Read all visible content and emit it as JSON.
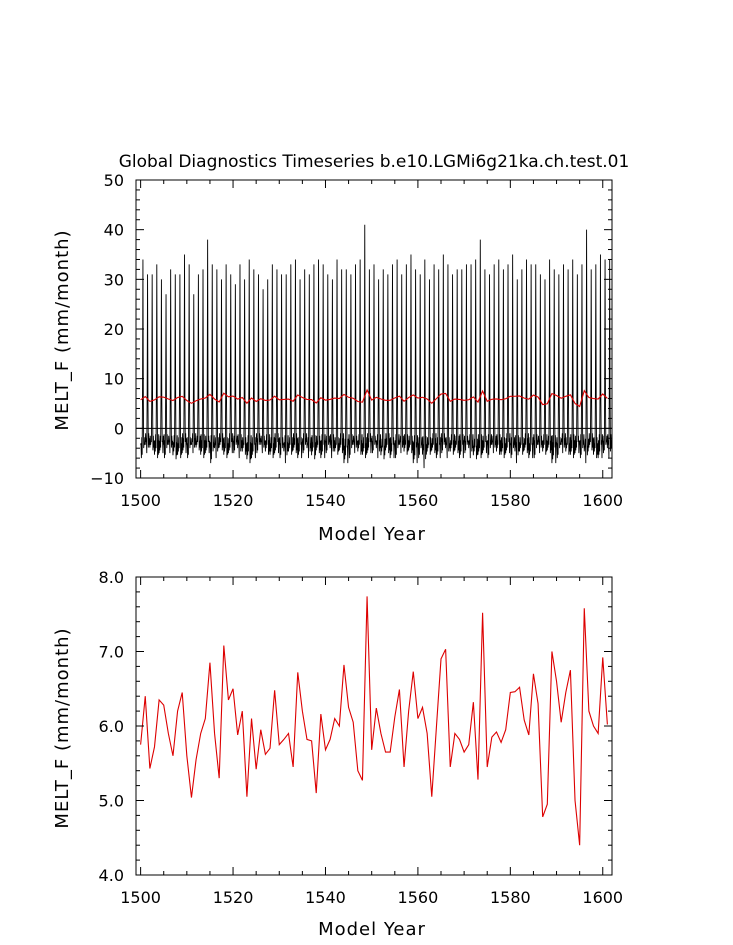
{
  "chart_data": [
    {
      "type": "line",
      "title": "Global Diagnostics Timeseries b.e10.LGMi6g21ka.ch.test.01",
      "xlabel": "Model Year",
      "ylabel": "MELT_F (mm/month)",
      "xlim": [
        1499,
        1602
      ],
      "ylim": [
        -10,
        50
      ],
      "xticks": [
        1500,
        1520,
        1540,
        1560,
        1580,
        1600
      ],
      "yticks": [
        -10,
        0,
        10,
        20,
        30,
        40,
        50
      ],
      "xtick_labels": [
        "1500",
        "1520",
        "1540",
        "1560",
        "1580",
        "1600"
      ],
      "ytick_labels": [
        "−10",
        "0",
        "10",
        "20",
        "30",
        "40",
        "50"
      ],
      "zero_line": true,
      "grid": false,
      "series": [
        {
          "kind": "monthly",
          "color": "#000000",
          "start_year": 1500,
          "annual_peaks": [
            34,
            31,
            31,
            33,
            30,
            27,
            32,
            31,
            31,
            35,
            33,
            27,
            31,
            32,
            38,
            33,
            32,
            30,
            33,
            31,
            29,
            33,
            30,
            34,
            32,
            31,
            28,
            30,
            33,
            32,
            31,
            31,
            33,
            34,
            30,
            32,
            31,
            33,
            34,
            33,
            31,
            30,
            34,
            32,
            32,
            31,
            33,
            34,
            41,
            32,
            33,
            30,
            32,
            31,
            33,
            34,
            31,
            33,
            35,
            32,
            31,
            34,
            30,
            33,
            32,
            35,
            33,
            31,
            32,
            32,
            33,
            33,
            34,
            38,
            32,
            31,
            33,
            34,
            32,
            33,
            35,
            30,
            32,
            34,
            33,
            33,
            31,
            30,
            34,
            32,
            31,
            33,
            32,
            34,
            31,
            33,
            40,
            32,
            33,
            35,
            34,
            34
          ],
          "annual_mins": [
            -6,
            -5,
            -5,
            -6,
            -5,
            -6,
            -5,
            -7,
            -6,
            -5,
            -6,
            -5,
            -5,
            -6,
            -5,
            -7,
            -6,
            -5,
            -6,
            -5,
            -5,
            -6,
            -6,
            -7,
            -6,
            -5,
            -5,
            -6,
            -6,
            -5,
            -6,
            -7,
            -6,
            -5,
            -6,
            -5,
            -6,
            -7,
            -5,
            -6,
            -5,
            -6,
            -6,
            -5,
            -7,
            -6,
            -5,
            -6,
            -6,
            -5,
            -5,
            -6,
            -7,
            -5,
            -6,
            -6,
            -5,
            -6,
            -5,
            -7,
            -6,
            -8,
            -6,
            -5,
            -6,
            -5,
            -6,
            -6,
            -5,
            -6,
            -5,
            -6,
            -7,
            -6,
            -5,
            -6,
            -5,
            -6,
            -6,
            -5,
            -6,
            -7,
            -6,
            -5,
            -6,
            -6,
            -5,
            -6,
            -5,
            -7,
            -6,
            -5,
            -6,
            -6,
            -5,
            -6,
            -7,
            -5,
            -6,
            -6,
            -5,
            -6
          ]
        },
        {
          "kind": "annual_mean",
          "color": "#dd0000",
          "start_year": 1500,
          "values": [
            5.75,
            6.4,
            5.43,
            5.72,
            6.35,
            6.28,
            5.9,
            5.6,
            6.2,
            6.45,
            5.6,
            5.04,
            5.55,
            5.9,
            6.1,
            6.85,
            5.9,
            5.3,
            7.08,
            6.35,
            6.5,
            5.88,
            6.2,
            5.05,
            6.1,
            5.42,
            5.95,
            5.62,
            5.7,
            6.48,
            5.75,
            5.82,
            5.9,
            5.45,
            6.72,
            6.2,
            5.82,
            5.8,
            5.1,
            6.16,
            5.68,
            5.82,
            6.1,
            6.0,
            6.82,
            6.25,
            6.05,
            5.4,
            5.27,
            7.74,
            5.68,
            6.24,
            5.9,
            5.65,
            5.65,
            6.12,
            6.49,
            5.45,
            6.2,
            6.73,
            6.1,
            6.25,
            5.9,
            5.05,
            5.98,
            6.9,
            7.03,
            5.45,
            5.9,
            5.82,
            5.65,
            5.75,
            6.32,
            5.28,
            7.52,
            5.45,
            5.85,
            5.92,
            5.78,
            5.95,
            6.45,
            6.46,
            6.52,
            6.08,
            5.88,
            6.7,
            6.3,
            4.78,
            4.95,
            7.0,
            6.6,
            6.05,
            6.45,
            6.75,
            5.0,
            4.4,
            7.58,
            6.2,
            6.0,
            5.9,
            6.92,
            6.02
          ]
        }
      ]
    },
    {
      "type": "line",
      "title": "",
      "xlabel": "Model Year",
      "ylabel": "MELT_F (mm/month)",
      "xlim": [
        1499,
        1602
      ],
      "ylim": [
        4.0,
        8.0
      ],
      "xticks": [
        1500,
        1520,
        1540,
        1560,
        1580,
        1600
      ],
      "yticks": [
        4.0,
        5.0,
        6.0,
        7.0,
        8.0
      ],
      "xtick_labels": [
        "1500",
        "1520",
        "1540",
        "1560",
        "1580",
        "1600"
      ],
      "ytick_labels": [
        "4.0",
        "5.0",
        "6.0",
        "7.0",
        "8.0"
      ],
      "grid": false,
      "series": [
        {
          "kind": "annual_mean",
          "color": "#dd0000",
          "start_year": 1500,
          "values": [
            5.75,
            6.4,
            5.43,
            5.72,
            6.35,
            6.28,
            5.9,
            5.6,
            6.2,
            6.45,
            5.6,
            5.04,
            5.55,
            5.9,
            6.1,
            6.85,
            5.9,
            5.3,
            7.08,
            6.35,
            6.5,
            5.88,
            6.2,
            5.05,
            6.1,
            5.42,
            5.95,
            5.62,
            5.7,
            6.48,
            5.75,
            5.82,
            5.9,
            5.45,
            6.72,
            6.2,
            5.82,
            5.8,
            5.1,
            6.16,
            5.68,
            5.82,
            6.1,
            6.0,
            6.82,
            6.25,
            6.05,
            5.4,
            5.27,
            7.74,
            5.68,
            6.24,
            5.9,
            5.65,
            5.65,
            6.12,
            6.49,
            5.45,
            6.2,
            6.73,
            6.1,
            6.25,
            5.9,
            5.05,
            5.98,
            6.9,
            7.03,
            5.45,
            5.9,
            5.82,
            5.65,
            5.75,
            6.32,
            5.28,
            7.52,
            5.45,
            5.85,
            5.92,
            5.78,
            5.95,
            6.45,
            6.46,
            6.52,
            6.08,
            5.88,
            6.7,
            6.3,
            4.78,
            4.95,
            7.0,
            6.6,
            6.05,
            6.45,
            6.75,
            5.0,
            4.4,
            7.58,
            6.2,
            6.0,
            5.9,
            6.92,
            6.02
          ]
        }
      ]
    }
  ]
}
